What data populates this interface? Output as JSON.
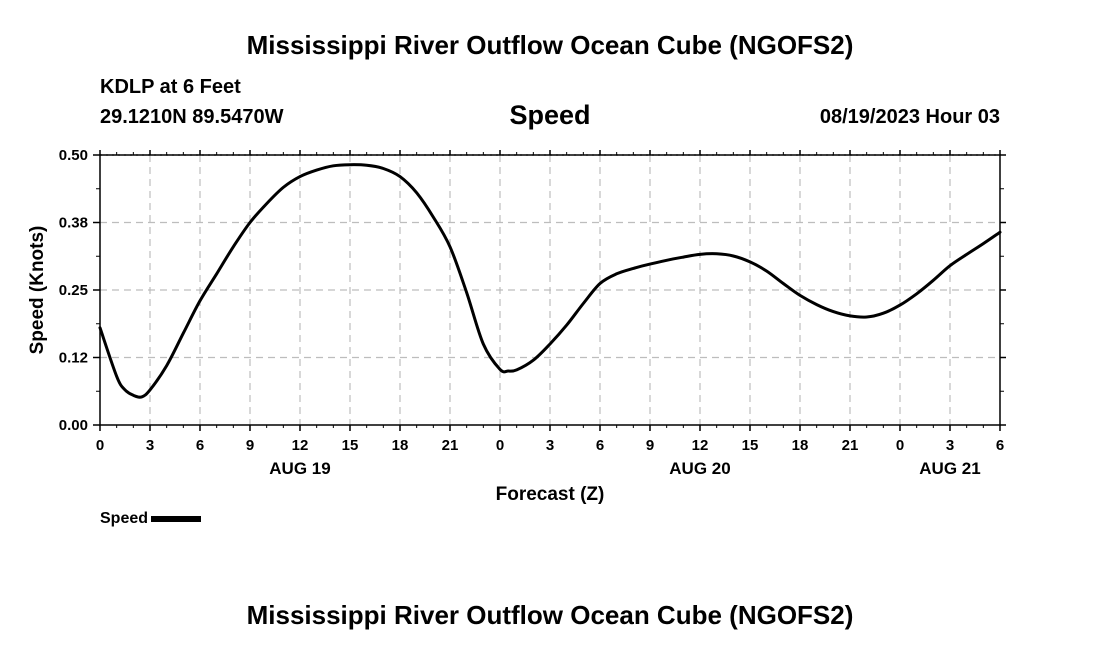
{
  "header": {
    "title": "Mississippi River Outflow Ocean Cube (NGOFS2)",
    "station": "KDLP at 6 Feet",
    "coords": "29.1210N  89.5470W",
    "variable": "Speed",
    "timestamp": "08/19/2023 Hour 03"
  },
  "footer": {
    "title": "Mississippi River Outflow Ocean Cube (NGOFS2)"
  },
  "chart_data": {
    "type": "line",
    "title": "Speed",
    "xlabel": "Forecast (Z)",
    "ylabel": "Speed (Knots)",
    "x_unit": "forecast hour from 00Z Aug 19",
    "xlim": [
      0,
      54
    ],
    "ylim": [
      0,
      0.5
    ],
    "yticks": [
      0.0,
      0.125,
      0.25,
      0.375,
      0.5
    ],
    "ytick_labels": [
      "0.00",
      "0.12",
      "0.25",
      "0.38",
      "0.50"
    ],
    "xticks": [
      0,
      3,
      6,
      9,
      12,
      15,
      18,
      21,
      24,
      27,
      30,
      33,
      36,
      39,
      42,
      45,
      48,
      51,
      54
    ],
    "xtick_labels": [
      "0",
      "3",
      "6",
      "9",
      "12",
      "15",
      "18",
      "21",
      "0",
      "3",
      "6",
      "9",
      "12",
      "15",
      "18",
      "21",
      "0",
      "3",
      "6"
    ],
    "date_labels": [
      {
        "x": 12,
        "label": "AUG 19"
      },
      {
        "x": 36,
        "label": "AUG 20"
      },
      {
        "x": 51,
        "label": "AUG 21"
      }
    ],
    "grid": true,
    "legend_position": "bottom-left",
    "series": [
      {
        "name": "Speed",
        "color": "#000000",
        "x": [
          0,
          1,
          1.5,
          2,
          2.5,
          3,
          4,
          5,
          6,
          7,
          8,
          9,
          10,
          11,
          12,
          13,
          14,
          15,
          16,
          17,
          18,
          19,
          20,
          21,
          22,
          23,
          24,
          24.5,
          25,
          26,
          27,
          28,
          29,
          30,
          31,
          32,
          33,
          34,
          35,
          36,
          37,
          38,
          39,
          40,
          41,
          42,
          43,
          44,
          45,
          46,
          47,
          48,
          49,
          50,
          51,
          52,
          53,
          54
        ],
        "y": [
          0.18,
          0.09,
          0.065,
          0.055,
          0.052,
          0.065,
          0.11,
          0.17,
          0.23,
          0.28,
          0.33,
          0.375,
          0.41,
          0.44,
          0.46,
          0.472,
          0.48,
          0.482,
          0.481,
          0.475,
          0.46,
          0.43,
          0.385,
          0.33,
          0.245,
          0.15,
          0.103,
          0.1,
          0.102,
          0.12,
          0.15,
          0.185,
          0.225,
          0.262,
          0.28,
          0.29,
          0.298,
          0.305,
          0.311,
          0.316,
          0.317,
          0.313,
          0.302,
          0.285,
          0.262,
          0.24,
          0.223,
          0.21,
          0.202,
          0.2,
          0.207,
          0.222,
          0.243,
          0.268,
          0.295,
          0.316,
          0.336,
          0.357
        ]
      }
    ]
  }
}
